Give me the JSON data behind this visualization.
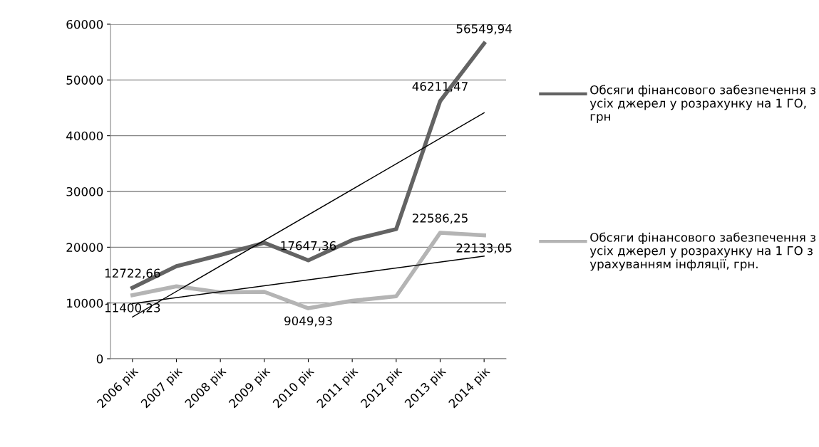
{
  "chart_data": {
    "type": "line",
    "categories": [
      "2006 рік",
      "2007 рік",
      "2008 рік",
      "2009 рік",
      "2010 рік",
      "2011 рік",
      "2012 рік",
      "2013 рік",
      "2014 рік"
    ],
    "ylim": [
      0,
      60000
    ],
    "yticks": [
      0,
      10000,
      20000,
      30000,
      40000,
      50000,
      60000
    ],
    "grid": "y",
    "legend": "right",
    "line_style": "solid",
    "marker": "none",
    "series": [
      {
        "name": "Обсяги фінансового забезпечення з усіх джерел у розрахунку на 1 ГО, грн",
        "color": "#636363",
        "values": [
          12722.66,
          16600,
          18600,
          20800,
          17647.36,
          21300,
          23250,
          46211.47,
          56549.94
        ],
        "value_labels": [
          "12722,66",
          null,
          null,
          null,
          "17647,36",
          null,
          null,
          "46211,47",
          "56549,94"
        ]
      },
      {
        "name": "Обсяги фінансового забезпечення з усіх джерел у розрахунку на 1 ГО з урахуванням інфляції, грн.",
        "color": "#b4b4b4",
        "values": [
          11400.23,
          13000,
          11900,
          12000,
          9049.93,
          10400,
          11200,
          22586.25,
          22133.05
        ],
        "value_labels": [
          "11400,23",
          null,
          null,
          null,
          "9049,93",
          null,
          null,
          "22586,25",
          "22133,05"
        ]
      },
      {
        "type": "line",
        "color": "#000000",
        "x": [
          "2006 рік",
          "2014 рік"
        ],
        "values": [
          7500,
          44100
        ]
      },
      {
        "type": "line",
        "color": "#000000",
        "x": [
          "2006 рік",
          "2014 рік"
        ],
        "values": [
          9900,
          18400
        ]
      }
    ]
  }
}
